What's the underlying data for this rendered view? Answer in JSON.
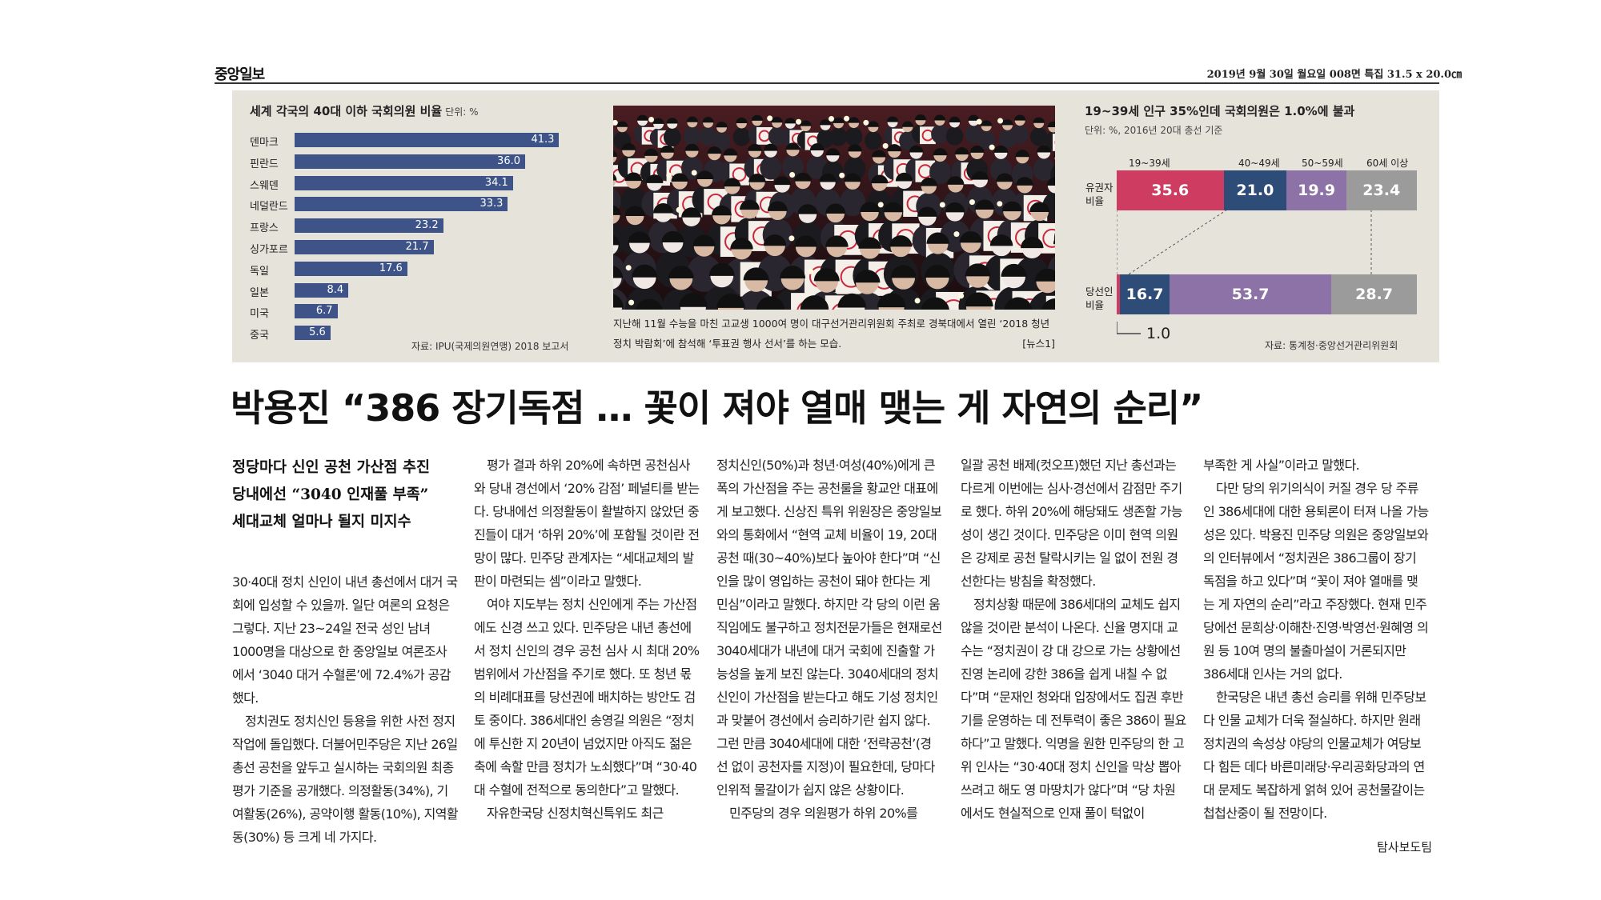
{
  "masthead": {
    "logo": "중앙일보",
    "info": "2019년 9월 30일 월요일 008면 특집 31.5 x 20.0㎝"
  },
  "left_chart_title": "세계 각국의 40대 이하 국회의원 비율",
  "left_chart_unit": "단위: %",
  "left_chart_source": "자료: IPU(국제의원연맹) 2018 보고서",
  "chart_data": [
    {
      "type": "bar",
      "title": "세계 각국의 40대 이하 국회의원 비율",
      "unit": "단위: %",
      "categories": [
        "덴마크",
        "핀란드",
        "스웨덴",
        "네덜란드",
        "프랑스",
        "싱가포르",
        "독일",
        "일본",
        "미국",
        "중국"
      ],
      "values": [
        41.3,
        36.0,
        34.1,
        33.3,
        23.2,
        21.7,
        17.6,
        8.4,
        6.7,
        5.6
      ],
      "value_labels": [
        "41.3",
        "36.0",
        "34.1",
        "33.3",
        "23.2",
        "21.7",
        "17.6",
        "8.4",
        "6.7",
        "5.6"
      ],
      "source": "자료: IPU(국제의원연맹) 2018 보고서",
      "orientation": "horizontal",
      "colors": {
        "bar": "#3e5488"
      }
    },
    {
      "type": "bar",
      "title": "19~39세 인구 35%인데 국회의원은 1.0%에 불과",
      "subtitle": "단위: %, 2016년 20대 총선 기준",
      "stacked": true,
      "orientation": "horizontal",
      "categories": [
        "유권자 비율",
        "당선인 비율"
      ],
      "series": [
        {
          "name": "19~39세",
          "values": [
            35.6,
            1.0
          ],
          "color": "#cf3c62"
        },
        {
          "name": "40~49세",
          "values": [
            21.0,
            16.7
          ],
          "color": "#2e4c78"
        },
        {
          "name": "50~59세",
          "values": [
            19.9,
            53.7
          ],
          "color": "#8d72a8"
        },
        {
          "name": "60세 이상",
          "values": [
            23.4,
            28.7
          ],
          "color": "#9b9b9b"
        }
      ],
      "source": "자료: 통계청·중앙선거관리위원회"
    }
  ],
  "right_chart": {
    "title": "19~39세 인구 35%인데 국회의원은 1.0%에 불과",
    "subtitle": "단위: %, 2016년 20대 총선 기준",
    "segment_labels": [
      "19~39세",
      "40~49세",
      "50~59세",
      "60세 이상"
    ],
    "row1_label": "유권자 비율",
    "row2_label": "당선인 비율",
    "row1_values": [
      "35.6",
      "21.0",
      "19.9",
      "23.4"
    ],
    "row2_values": [
      "16.7",
      "53.7",
      "28.7"
    ],
    "min_value": "1.0",
    "source": "자료: 통계청·중앙선거관리위원회"
  },
  "photo": {
    "caption": "지난해 11월 수능을 마친 고교생 1000여 명이 대구선거관리위원회 주최로 경북대에서 열린 ‘2018 청년정치 박람회’에 참석해 ‘투표권 행사 선서’를 하는 모습.",
    "credit": "[뉴스1]"
  },
  "headline": "박용진 “386 장기독점 … 꽃이 져야 열매 맺는 게 자연의 순리”",
  "subheads": [
    "정당마다 신인 공천 가산점 추진",
    "당내에선 “3040 인재풀 부족”",
    "세대교체 얼마나 될지 미지수"
  ],
  "body": {
    "col1": [
      "30·40대 정치 신인이 내년 총선에서 대거 국회에 입성할 수 있을까. 일단 여론의 요청은 그렇다. 지난 23~24일 전국 성인 남녀 1000명을 대상으로 한 중앙일보 여론조사에서 ‘3040 대거 수혈론’에 72.4%가 공감했다.",
      "정치권도 정치신인 등용을 위한 사전 정지 작업에 돌입했다. 더불어민주당은 지난 26일 총선 공천을 앞두고 실시하는 국회의원 최종평가 기준을 공개했다. 의정활동(34%), 기여활동(26%), 공약이행 활동(10%), 지역활동(30%) 등 크게 네 가지다."
    ],
    "col2": [
      "평가 결과 하위 20%에 속하면 공천심사와 당내 경선에서 ‘20% 감점’ 페널티를 받는다. 당내에선 의정활동이 활발하지 않았던 중진들이 대거 ‘하위 20%’에 포함될 것이란 전망이 많다. 민주당 관계자는 “세대교체의 발판이 마련되는 셈”이라고 말했다.",
      "여야 지도부는 정치 신인에게 주는 가산점에도 신경 쓰고 있다. 민주당은 내년 총선에서 정치 신인의 경우 공천 심사 시 최대 20% 범위에서 가산점을 주기로 했다. 또 청년 몫의 비례대표를 당선권에 배치하는 방안도 검토 중이다. 386세대인 송영길 의원은 “정치에 투신한 지 20년이 넘었지만 아직도 젊은 축에 속할 만큼 정치가 노쇠했다”며 “30·40대 수혈에 전적으로 동의한다”고 말했다.",
      "자유한국당 신정치혁신특위도 최근"
    ],
    "col3": [
      "정치신인(50%)과 청년·여성(40%)에게 큰 폭의 가산점을 주는 공천룰을 황교안 대표에게 보고했다. 신상진 특위 위원장은 중앙일보와의 통화에서 “현역 교체 비율이 19, 20대 공천 때(30~40%)보다 높아야 한다”며 “신인을 많이 영입하는 공천이 돼야 한다는 게 민심”이라고 말했다. 하지만 각 당의 이런 움직임에도 불구하고 정치전문가들은 현재로선 3040세대가 내년에 대거 국회에 진출할 가능성을 높게 보진 않는다. 3040세대의 정치신인이 가산점을 받는다고 해도 기성 정치인과 맞붙어 경선에서 승리하기란 쉽지 않다. 그런 만큼 3040세대에 대한 ‘전략공천’(경선 없이 공천자를 지정)이 필요한데, 당마다 인위적 물갈이가 쉽지 않은 상황이다.",
      "민주당의 경우 의원평가 하위 20%를"
    ],
    "col4": [
      "일괄 공천 배제(컷오프)했던 지난 총선과는 다르게 이번에는 심사·경선에서 감점만 주기로 했다. 하위 20%에 해당돼도 생존할 가능성이 생긴 것이다. 민주당은 이미 현역 의원은 강제로 공천 탈락시키는 일 없이 전원 경선한다는 방침을 확정했다.",
      "정치상황 때문에 386세대의 교체도 쉽지 않을 것이란 분석이 나온다. 신율 명지대 교수는 “정치권이 강 대 강으로 가는 상황에선 진영 논리에 강한 386을 쉽게 내칠 수 없다”며 “문재인 청와대 입장에서도 집권 후반기를 운영하는 데 전투력이 좋은 386이 필요하다”고 말했다. 익명을 원한 민주당의 한 고위 인사는 “30·40대 정치 신인을 막상 뽑아 쓰려고 해도 영 마땅치가 않다”며 “당 차원에서도 현실적으로 인재 풀이 턱없이"
    ],
    "col5": [
      "부족한 게 사실”이라고 말했다.",
      "다만 당의 위기의식이 커질 경우 당 주류인 386세대에 대한 용퇴론이 터져 나올 가능성은 있다. 박용진 민주당 의원은 중앙일보와의 인터뷰에서 “정치권은 386그룹이 장기 독점을 하고 있다”며 “꽃이 져야 열매를 맺는 게 자연의 순리”라고 주장했다. 현재 민주당에선 문희상·이해찬·진영·박영선·원혜영 의원 등 10여 명의 불출마설이 거론되지만 386세대 인사는 거의 없다.",
      "한국당은 내년 총선 승리를 위해 민주당보다 인물 교체가 더욱 절실하다. 하지만 원래 정치권의 속성상 야당의 인물교체가 여당보다 힘든 데다 바른미래당·우리공화당과의 연대 문제도 복잡하게 얽혀 있어 공천물갈이는 첩첩산중이 될 전망이다."
    ]
  },
  "byline": "탐사보도팀"
}
